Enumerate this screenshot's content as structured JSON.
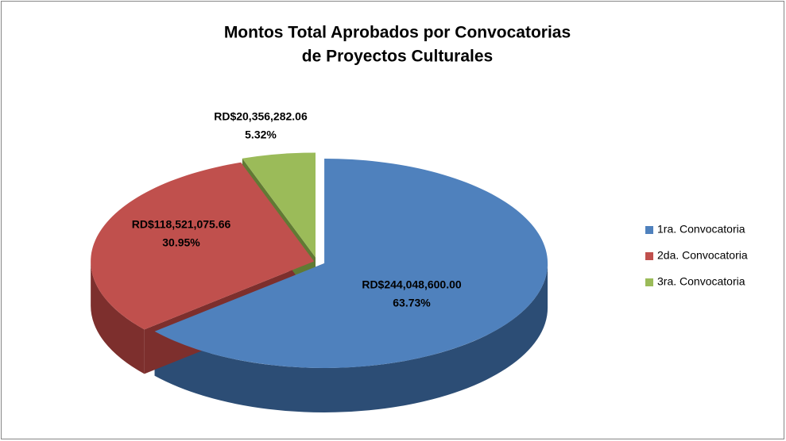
{
  "chart_data": {
    "type": "pie",
    "title": [
      "Montos Total Aprobados por Convocatorias",
      "de Proyectos Culturales"
    ],
    "categories": [
      "1ra. Convocatoria",
      "2da. Convocatoria",
      "3ra. Convocatoria"
    ],
    "values": [
      244048600.0,
      118521075.66,
      20356282.06
    ],
    "value_labels": [
      "RD$244,048,600.00",
      "RD$118,521,075.66",
      "RD$20,356,282.06"
    ],
    "percents": [
      63.73,
      30.95,
      5.32
    ],
    "percent_labels": [
      "63.73%",
      "30.95%",
      "5.32%"
    ],
    "colors": [
      "#4f81bd",
      "#c0504d",
      "#9bbb59"
    ],
    "side_colors": [
      "#2c4d75",
      "#7d2f2d",
      "#617a34"
    ],
    "legend": "right"
  }
}
